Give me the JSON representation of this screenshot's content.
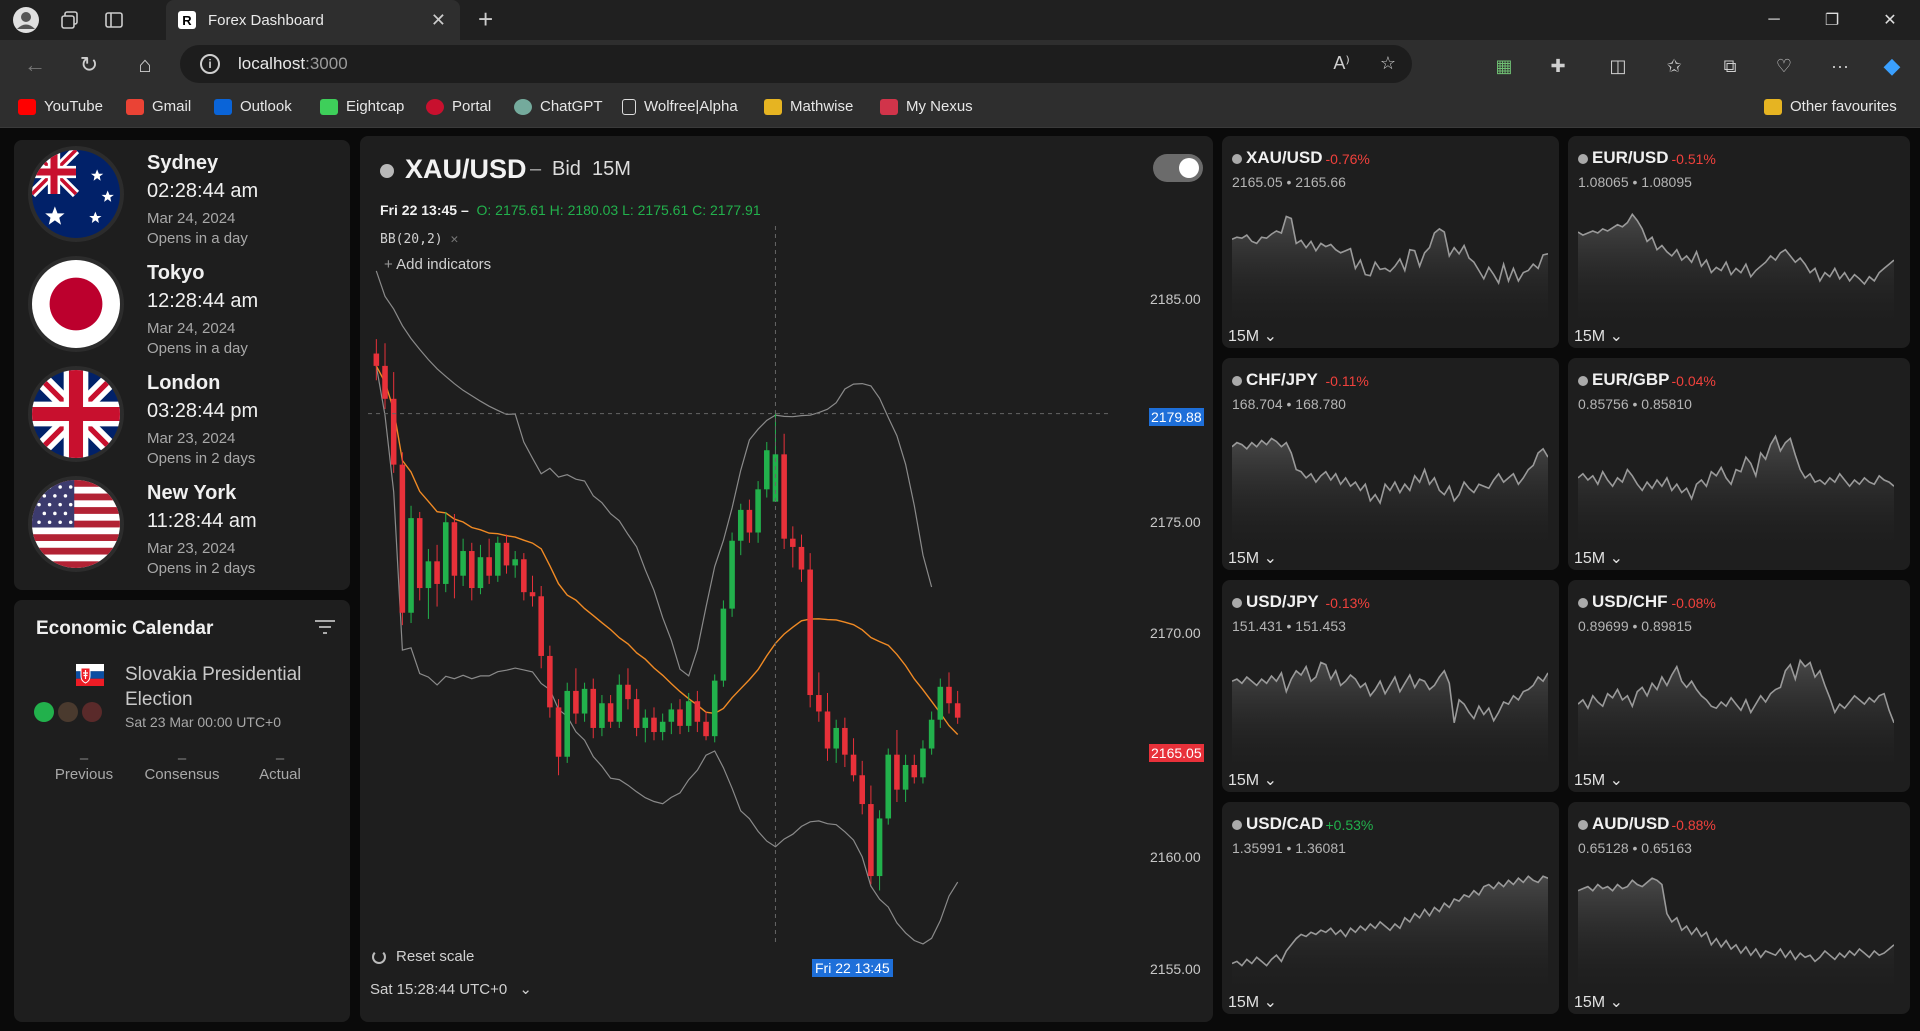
{
  "browser": {
    "tab_title": "Forex Dashboard",
    "tab_favicon": "R",
    "url_host": "localhost",
    "url_port": ":3000",
    "bookmarks": [
      {
        "label": "YouTube",
        "color": "#ff0000"
      },
      {
        "label": "Gmail",
        "color": "#ea4335"
      },
      {
        "label": "Outlook",
        "color": "#0a64d8"
      },
      {
        "label": "Eightcap",
        "color": "#3ecf5a"
      },
      {
        "label": "Portal",
        "color": "#c8102e"
      },
      {
        "label": "ChatGPT",
        "color": "#74aa9c"
      },
      {
        "label": "Wolfree|Alpha",
        "color": "#dddddd"
      },
      {
        "label": "Mathwise",
        "color": "#e6b422"
      },
      {
        "label": "My Nexus",
        "color": "#d1344a"
      }
    ],
    "other_favourites": "Other favourites"
  },
  "clocks": [
    {
      "city": "Sydney",
      "time": "02:28:44 am",
      "date": "Mar 24, 2024",
      "status": "Opens in a day",
      "flag": "au-flag-icon"
    },
    {
      "city": "Tokyo",
      "time": "12:28:44 am",
      "date": "Mar 24, 2024",
      "status": "Opens in a day",
      "flag": "jp-flag-icon"
    },
    {
      "city": "London",
      "time": "03:28:44 pm",
      "date": "Mar 23, 2024",
      "status": "Opens in 2 days",
      "flag": "uk-flag-icon"
    },
    {
      "city": "New York",
      "time": "11:28:44 am",
      "date": "Mar 23, 2024",
      "status": "Opens in 2 days",
      "flag": "us-flag-icon"
    }
  ],
  "calendar": {
    "title": "Economic Calendar",
    "event": {
      "title": "Slovakia Presidential Election",
      "time": "Sat 23 Mar 00:00 UTC+0",
      "impact_colors": [
        "#22b14c",
        "#4a3a2e",
        "#5a2a2a"
      ]
    },
    "metrics": [
      {
        "label": "Previous",
        "value": "–"
      },
      {
        "label": "Consensus",
        "value": "–"
      },
      {
        "label": "Actual",
        "value": "–"
      }
    ]
  },
  "main_chart": {
    "symbol": "XAU/USD",
    "separator": "–",
    "side": "Bid",
    "timeframe": "15M",
    "ohlc_date": "Fri 22 13:45 –",
    "ohlc_values": "O: 2175.61 H: 2180.03 L: 2175.61 C: 2177.91",
    "indicator": "BB(20,2)",
    "add_indicators": "Add indicators",
    "price_ticks": [
      "2185.00",
      "2175.00",
      "2170.00",
      "2160.00",
      "2155.00"
    ],
    "crosshair_price": "2179.88",
    "last_price": "2165.05",
    "crosshair_time": "Fri 22 13:45",
    "reset_label": "Reset scale",
    "timezone": "Sat 15:28:44 UTC+0",
    "colors": {
      "up": "#22b14c",
      "down": "#e8313a",
      "basis": "#f08a24",
      "band": "#8a8a8a"
    }
  },
  "chart_data": {
    "type": "candlestick",
    "symbol": "XAU/USD",
    "ylim": [
      2154,
      2189
    ],
    "candles": [
      [
        2182.8,
        2183.5,
        2181.5,
        2182.2
      ],
      [
        2182.2,
        2183.3,
        2180.1,
        2180.6
      ],
      [
        2180.6,
        2181.9,
        2177.0,
        2177.4
      ],
      [
        2177.4,
        2178.0,
        2169.6,
        2170.2
      ],
      [
        2170.2,
        2175.4,
        2169.7,
        2174.8
      ],
      [
        2174.8,
        2175.1,
        2170.8,
        2171.4
      ],
      [
        2171.4,
        2173.3,
        2169.9,
        2172.7
      ],
      [
        2172.7,
        2173.5,
        2170.5,
        2171.6
      ],
      [
        2171.6,
        2175.1,
        2171.2,
        2174.6
      ],
      [
        2174.6,
        2175.0,
        2170.9,
        2172.0
      ],
      [
        2172.0,
        2173.8,
        2171.5,
        2173.2
      ],
      [
        2173.2,
        2173.6,
        2170.8,
        2171.4
      ],
      [
        2171.4,
        2173.5,
        2171.1,
        2172.9
      ],
      [
        2172.9,
        2173.8,
        2171.6,
        2172.0
      ],
      [
        2172.0,
        2173.9,
        2171.7,
        2173.6
      ],
      [
        2173.6,
        2174.0,
        2172.1,
        2172.5
      ],
      [
        2172.5,
        2173.2,
        2171.9,
        2172.8
      ],
      [
        2172.8,
        2173.1,
        2170.8,
        2171.2
      ],
      [
        2171.2,
        2172.0,
        2170.5,
        2171.0
      ],
      [
        2171.0,
        2171.5,
        2167.5,
        2168.1
      ],
      [
        2168.1,
        2168.6,
        2165.1,
        2165.6
      ],
      [
        2165.6,
        2166.0,
        2162.3,
        2163.2
      ],
      [
        2163.2,
        2166.8,
        2162.9,
        2166.4
      ],
      [
        2166.4,
        2167.5,
        2164.8,
        2165.3
      ],
      [
        2165.3,
        2166.8,
        2164.9,
        2166.5
      ],
      [
        2166.5,
        2167.0,
        2164.1,
        2164.6
      ],
      [
        2164.6,
        2166.2,
        2164.2,
        2165.8
      ],
      [
        2165.8,
        2166.2,
        2164.6,
        2164.9
      ],
      [
        2164.9,
        2167.2,
        2164.6,
        2166.7
      ],
      [
        2166.7,
        2167.5,
        2165.5,
        2166.0
      ],
      [
        2166.0,
        2166.5,
        2164.2,
        2164.6
      ],
      [
        2164.6,
        2165.5,
        2163.9,
        2165.1
      ],
      [
        2165.1,
        2165.6,
        2164.0,
        2164.4
      ],
      [
        2164.4,
        2165.3,
        2164.0,
        2164.9
      ],
      [
        2164.9,
        2165.8,
        2164.3,
        2165.5
      ],
      [
        2165.5,
        2166.0,
        2164.3,
        2164.7
      ],
      [
        2164.7,
        2166.3,
        2164.4,
        2165.9
      ],
      [
        2165.9,
        2166.4,
        2164.4,
        2164.9
      ],
      [
        2164.9,
        2165.4,
        2164.0,
        2164.2
      ],
      [
        2164.2,
        2167.2,
        2163.9,
        2166.9
      ],
      [
        2166.9,
        2170.8,
        2166.6,
        2170.4
      ],
      [
        2170.4,
        2174.1,
        2170.0,
        2173.7
      ],
      [
        2173.7,
        2175.5,
        2173.0,
        2175.2
      ],
      [
        2175.2,
        2175.7,
        2173.6,
        2174.1
      ],
      [
        2174.1,
        2176.6,
        2173.6,
        2176.2
      ],
      [
        2176.2,
        2178.5,
        2175.8,
        2178.1
      ],
      [
        2175.6,
        2180.0,
        2175.6,
        2177.9
      ],
      [
        2177.9,
        2178.9,
        2173.3,
        2173.8
      ],
      [
        2173.8,
        2174.4,
        2172.4,
        2173.4
      ],
      [
        2173.4,
        2174.0,
        2171.7,
        2172.3
      ],
      [
        2172.3,
        2173.1,
        2165.6,
        2166.2
      ],
      [
        2166.2,
        2167.3,
        2164.9,
        2165.4
      ],
      [
        2165.4,
        2166.3,
        2163.0,
        2163.6
      ],
      [
        2163.6,
        2165.0,
        2162.9,
        2164.6
      ],
      [
        2164.6,
        2165.1,
        2162.7,
        2163.3
      ],
      [
        2163.3,
        2164.1,
        2162.0,
        2162.3
      ],
      [
        2162.3,
        2163.0,
        2160.4,
        2160.9
      ],
      [
        2160.9,
        2161.8,
        2157.0,
        2157.4
      ],
      [
        2157.4,
        2160.6,
        2156.7,
        2160.2
      ],
      [
        2160.2,
        2163.6,
        2159.9,
        2163.3
      ],
      [
        2163.3,
        2164.5,
        2161.0,
        2161.6
      ],
      [
        2161.6,
        2163.3,
        2161.0,
        2162.8
      ],
      [
        2162.8,
        2163.3,
        2161.9,
        2162.2
      ],
      [
        2162.2,
        2164.0,
        2161.9,
        2163.6
      ],
      [
        2163.6,
        2165.4,
        2163.3,
        2165.0
      ],
      [
        2165.0,
        2167.0,
        2164.6,
        2166.6
      ],
      [
        2166.6,
        2167.3,
        2165.3,
        2165.8
      ],
      [
        2165.8,
        2166.4,
        2164.8,
        2165.1
      ]
    ]
  },
  "pairs": [
    {
      "symbol": "XAU/USD",
      "change": "-0.76%",
      "dir": "neg",
      "bid": "2165.05",
      "ask": "2165.66",
      "timeframe": "15M",
      "values": [
        68,
        70,
        69,
        72,
        66,
        64,
        70,
        69,
        73,
        76,
        74,
        90,
        88,
        64,
        67,
        60,
        66,
        57,
        64,
        61,
        63,
        58,
        55,
        57,
        59,
        40,
        48,
        34,
        33,
        46,
        39,
        40,
        37,
        42,
        49,
        38,
        58,
        57,
        42,
        55,
        60,
        74,
        78,
        75,
        52,
        60,
        54,
        62,
        50,
        46,
        38,
        30,
        41,
        34,
        26,
        44,
        28,
        40,
        28,
        36,
        38,
        44,
        40,
        53,
        54
      ]
    },
    {
      "symbol": "EUR/USD",
      "change": "-0.51%",
      "dir": "neg",
      "bid": "1.08065",
      "ask": "1.08095",
      "timeframe": "15M",
      "values": [
        75,
        72,
        74,
        76,
        74,
        78,
        76,
        79,
        82,
        80,
        84,
        92,
        86,
        78,
        66,
        70,
        58,
        62,
        56,
        52,
        58,
        48,
        52,
        46,
        56,
        42,
        48,
        36,
        41,
        38,
        46,
        34,
        40,
        36,
        44,
        32,
        38,
        42,
        46,
        52,
        48,
        55,
        58,
        52,
        46,
        50,
        44,
        36,
        40,
        28,
        36,
        32,
        40,
        30,
        36,
        28,
        34,
        30,
        25,
        32,
        28,
        36,
        40,
        44,
        48
      ]
    },
    {
      "symbol": "CHF/JPY",
      "change": "-0.11%",
      "dir": "neg",
      "bid": "168.704",
      "ask": "168.780",
      "timeframe": "15M",
      "values": [
        82,
        86,
        84,
        80,
        86,
        82,
        88,
        84,
        90,
        87,
        82,
        86,
        76,
        60,
        58,
        52,
        56,
        48,
        54,
        58,
        50,
        56,
        46,
        52,
        44,
        48,
        40,
        46,
        30,
        36,
        28,
        46,
        40,
        48,
        38,
        46,
        40,
        54,
        48,
        60,
        46,
        52,
        40,
        36,
        44,
        30,
        36,
        48,
        42,
        38,
        46,
        44,
        42,
        50,
        56,
        48,
        52,
        56,
        46,
        52,
        60,
        64,
        76,
        80,
        72
      ]
    },
    {
      "symbol": "EUR/GBP",
      "change": "-0.04%",
      "dir": "neg",
      "bid": "0.85756",
      "ask": "0.85810",
      "timeframe": "15M",
      "values": [
        52,
        56,
        50,
        54,
        46,
        58,
        50,
        44,
        52,
        48,
        60,
        54,
        46,
        40,
        48,
        42,
        50,
        44,
        52,
        40,
        46,
        38,
        42,
        32,
        46,
        50,
        44,
        58,
        54,
        62,
        52,
        46,
        60,
        58,
        72,
        66,
        54,
        76,
        70,
        84,
        92,
        78,
        86,
        90,
        74,
        60,
        52,
        56,
        48,
        50,
        46,
        52,
        48,
        56,
        50,
        44,
        50,
        46,
        52,
        48,
        46,
        54,
        50,
        48,
        44
      ]
    },
    {
      "symbol": "USD/JPY",
      "change": "-0.13%",
      "dir": "neg",
      "bid": "151.431",
      "ask": "151.453",
      "timeframe": "15M",
      "values": [
        70,
        72,
        68,
        74,
        70,
        66,
        72,
        68,
        75,
        70,
        78,
        60,
        72,
        80,
        76,
        84,
        70,
        74,
        88,
        86,
        72,
        80,
        66,
        70,
        76,
        72,
        64,
        68,
        56,
        62,
        70,
        58,
        66,
        74,
        60,
        68,
        76,
        64,
        72,
        70,
        62,
        66,
        74,
        80,
        68,
        30,
        52,
        48,
        40,
        34,
        46,
        38,
        44,
        32,
        40,
        50,
        48,
        56,
        52,
        60,
        62,
        66,
        74,
        70,
        78
      ]
    },
    {
      "symbol": "USD/CHF",
      "change": "-0.08%",
      "dir": "neg",
      "bid": "0.89699",
      "ask": "0.89815",
      "timeframe": "15M",
      "values": [
        48,
        52,
        44,
        56,
        50,
        46,
        58,
        54,
        62,
        52,
        56,
        46,
        60,
        64,
        56,
        68,
        62,
        74,
        66,
        76,
        84,
        70,
        64,
        70,
        62,
        56,
        52,
        46,
        44,
        50,
        46,
        54,
        48,
        42,
        52,
        40,
        48,
        56,
        50,
        58,
        62,
        64,
        80,
        86,
        72,
        90,
        84,
        88,
        74,
        80,
        66,
        54,
        40,
        48,
        44,
        50,
        56,
        52,
        48,
        54,
        50,
        56,
        58,
        42,
        30
      ]
    },
    {
      "symbol": "USD/CAD",
      "change": "+0.53%",
      "dir": "pos",
      "bid": "1.35991",
      "ask": "1.36081",
      "timeframe": "15M",
      "values": [
        12,
        14,
        10,
        16,
        12,
        18,
        14,
        10,
        16,
        20,
        14,
        24,
        30,
        36,
        40,
        38,
        42,
        40,
        44,
        42,
        46,
        40,
        44,
        38,
        46,
        42,
        48,
        44,
        50,
        46,
        52,
        48,
        44,
        50,
        46,
        56,
        52,
        60,
        56,
        64,
        58,
        66,
        62,
        70,
        66,
        74,
        72,
        78,
        76,
        82,
        78,
        86,
        88,
        84,
        90,
        86,
        92,
        88,
        94,
        90,
        96,
        92,
        90,
        96,
        94
      ]
    },
    {
      "symbol": "AUD/USD",
      "change": "-0.88%",
      "dir": "neg",
      "bid": "0.65128",
      "ask": "0.65163",
      "timeframe": "15M",
      "values": [
        82,
        84,
        86,
        82,
        88,
        84,
        86,
        82,
        88,
        84,
        86,
        92,
        88,
        86,
        90,
        94,
        92,
        88,
        60,
        52,
        56,
        44,
        48,
        40,
        46,
        38,
        42,
        30,
        36,
        28,
        34,
        26,
        30,
        22,
        28,
        20,
        26,
        18,
        24,
        22,
        20,
        26,
        18,
        24,
        16,
        22,
        18,
        20,
        14,
        18,
        24,
        20,
        16,
        22,
        18,
        24,
        20,
        26,
        22,
        18,
        24,
        20,
        22,
        26,
        30
      ]
    }
  ]
}
